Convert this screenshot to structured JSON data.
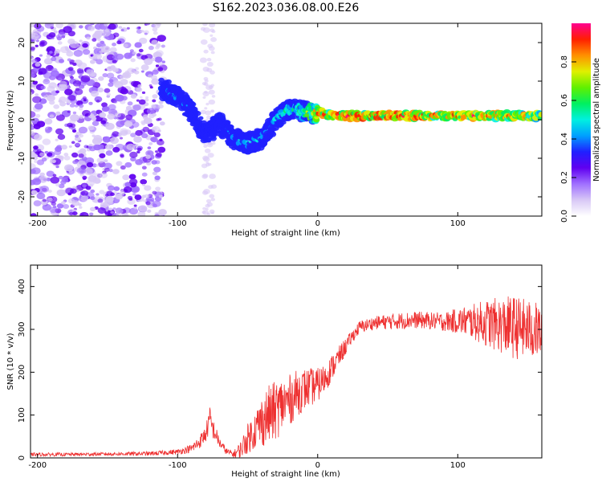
{
  "figure_title": "S162.2023.036.08.00.E26",
  "colors": {
    "snr_line": "#ee3030",
    "axis": "#000000",
    "colormap": [
      "#ffffff",
      "#d8c8f6",
      "#a070ff",
      "#6000f0",
      "#2020ff",
      "#00a0ff",
      "#00f0e0",
      "#00f060",
      "#60f000",
      "#e0f000",
      "#ff9000",
      "#ff2000",
      "#ff0090"
    ]
  },
  "chart_data": [
    {
      "type": "heatmap",
      "title": "",
      "xlabel": "Height of straight line (km)",
      "ylabel": "Frequency (Hz)",
      "xlim": [
        -205,
        160
      ],
      "ylim": [
        -25,
        25
      ],
      "xticks": [
        -200,
        -100,
        0,
        100
      ],
      "yticks": [
        -20,
        -10,
        0,
        10,
        20
      ],
      "grid": false,
      "colorbar": {
        "label": "Normalized spectral amplitude",
        "range": [
          0,
          1
        ],
        "ticks": [
          0.0,
          0.2,
          0.4,
          0.6,
          0.8
        ]
      },
      "ridge": {
        "description_points_height_km": [
          -110,
          -100,
          -90,
          -80,
          -70,
          -60,
          -50,
          -40,
          -30,
          -20,
          -10,
          0,
          10,
          20,
          50,
          100,
          150,
          160
        ],
        "frequency_hz": [
          8,
          6,
          2,
          -4,
          -1,
          -5,
          -6,
          -5,
          0,
          3,
          2,
          2,
          1,
          1,
          1,
          1,
          1,
          1
        ],
        "peak_amplitude": [
          0.45,
          0.5,
          0.35,
          0.3,
          0.4,
          0.45,
          0.5,
          0.5,
          0.55,
          0.6,
          0.7,
          0.95,
          1.0,
          1.0,
          1.0,
          1.0,
          0.9,
          0.85
        ]
      }
    },
    {
      "type": "line",
      "title": "",
      "xlabel": "Height of straight line (km)",
      "ylabel": "SNR (10 * v/v)",
      "xlim": [
        -205,
        160
      ],
      "ylim": [
        0,
        450
      ],
      "xticks": [
        -200,
        -100,
        0,
        100
      ],
      "yticks": [
        0,
        100,
        200,
        300,
        400
      ],
      "grid": false,
      "envelope": {
        "x": [
          -205,
          -180,
          -150,
          -120,
          -100,
          -90,
          -85,
          -80,
          -77,
          -75,
          -70,
          -65,
          -60,
          -55,
          -50,
          -45,
          -40,
          -35,
          -30,
          -25,
          -20,
          -15,
          -10,
          -5,
          0,
          5,
          10,
          15,
          20,
          25,
          30,
          40,
          50,
          60,
          70,
          80,
          90,
          100,
          110,
          120,
          130,
          140,
          150,
          160
        ],
        "mean": [
          8,
          8,
          9,
          10,
          14,
          22,
          35,
          55,
          90,
          70,
          35,
          15,
          8,
          20,
          45,
          65,
          85,
          100,
          110,
          125,
          135,
          150,
          160,
          165,
          170,
          185,
          210,
          235,
          260,
          285,
          305,
          315,
          318,
          320,
          322,
          320,
          318,
          320,
          318,
          315,
          310,
          305,
          300,
          295
        ],
        "spread": [
          4,
          4,
          4,
          5,
          6,
          10,
          15,
          20,
          30,
          25,
          12,
          8,
          8,
          20,
          35,
          45,
          60,
          70,
          70,
          65,
          60,
          55,
          50,
          45,
          40,
          35,
          30,
          25,
          20,
          15,
          15,
          15,
          18,
          20,
          20,
          20,
          22,
          30,
          40,
          55,
          65,
          75,
          70,
          65
        ]
      }
    }
  ]
}
